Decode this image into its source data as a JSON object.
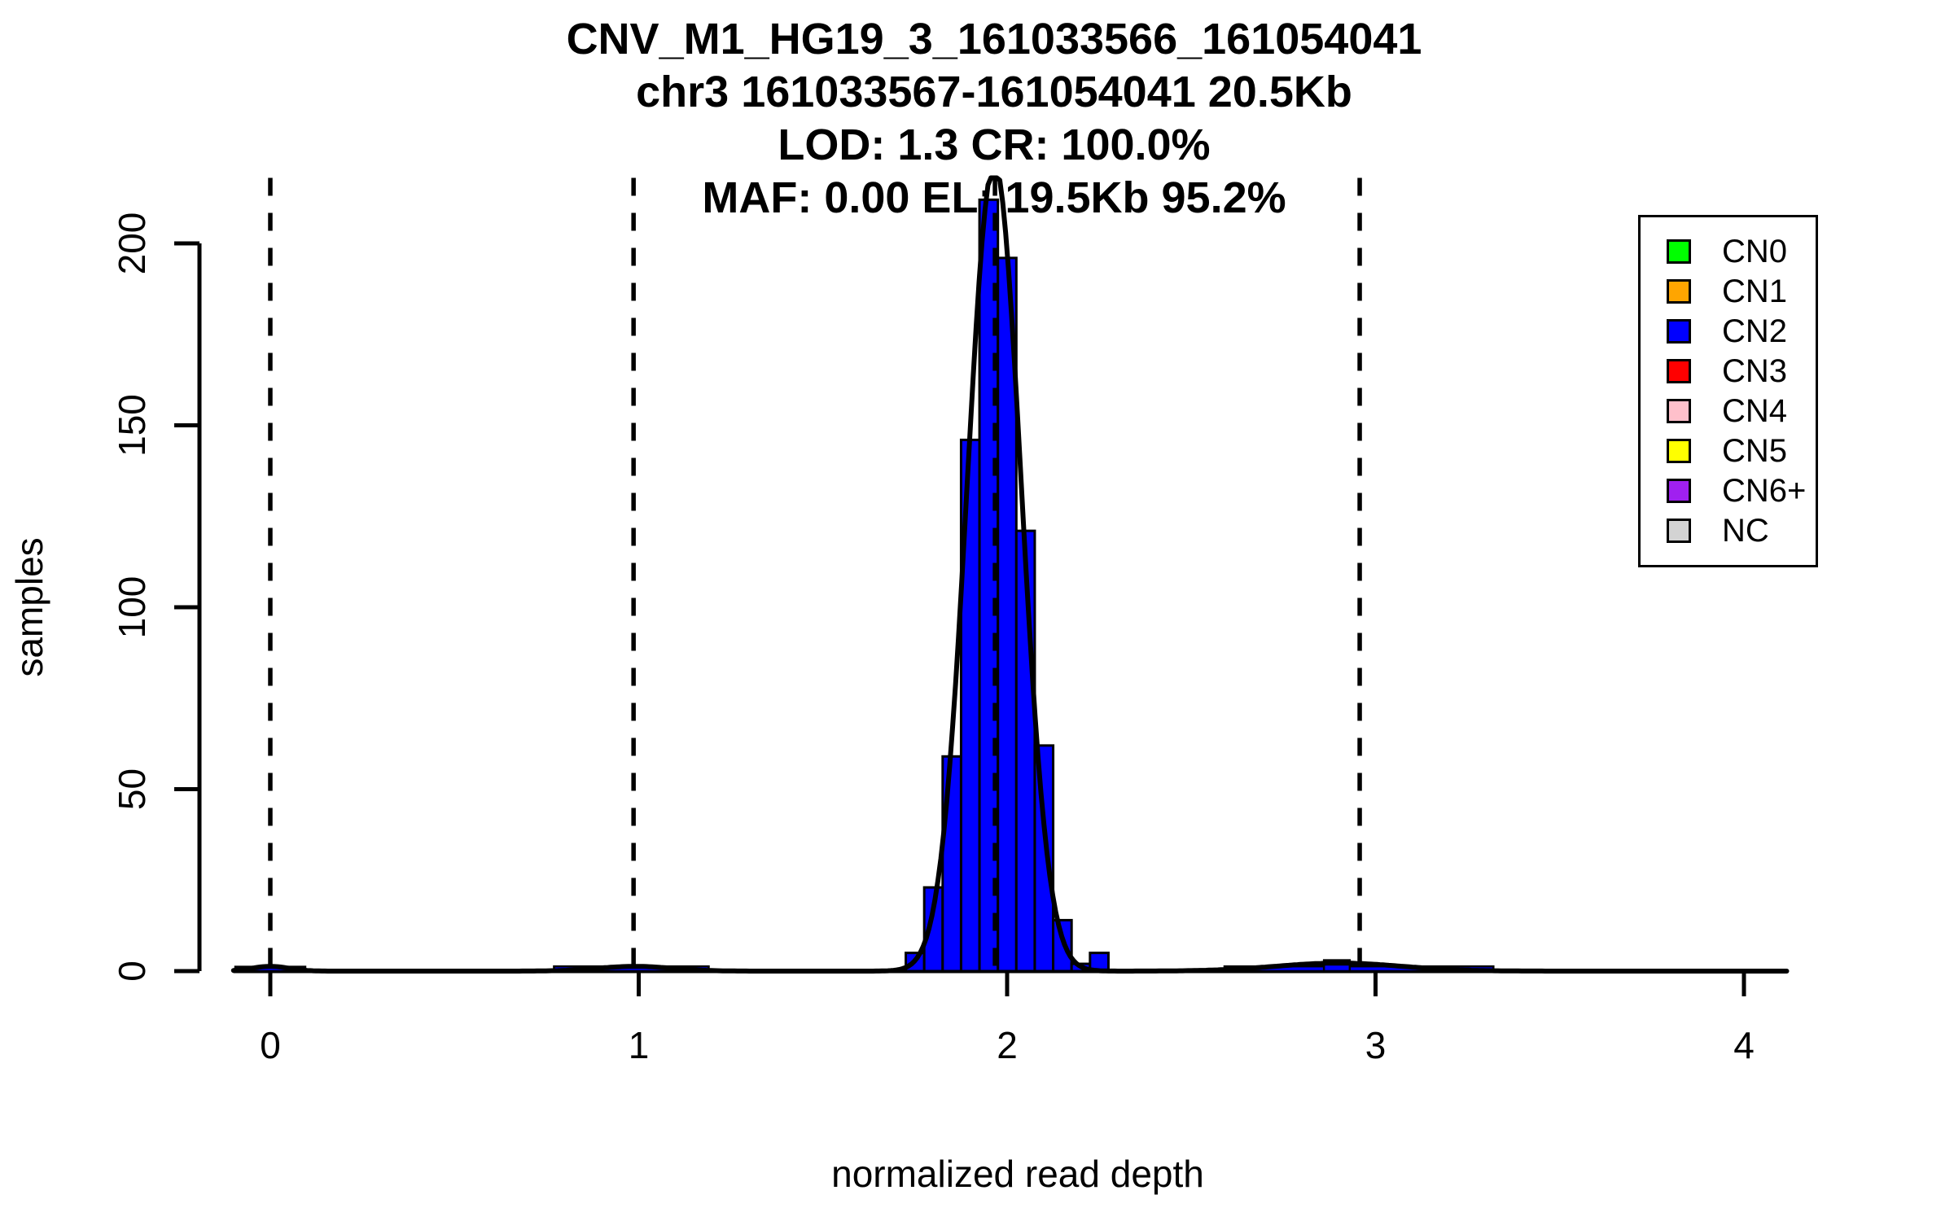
{
  "title": {
    "line1": "CNV_M1_HG19_3_161033566_161054041",
    "line2": "chr3 161033567-161054041 20.5Kb",
    "line3": "LOD: 1.3 CR: 100.0%",
    "line4": "MAF: 0.00 EL: 19.5Kb 95.2%"
  },
  "chart_data": {
    "type": "bar",
    "subtype": "histogram-with-density-curve",
    "title": "CNV_M1_HG19_3_161033566_161054041 / chr3 161033567-161054041 20.5Kb / LOD: 1.3 CR: 100.0% / MAF: 0.00 EL: 19.5Kb 95.2%",
    "xlabel": "normalized read depth",
    "ylabel": "samples",
    "xlim": [
      -0.1,
      4.12
    ],
    "ylim": [
      0,
      218
    ],
    "x_ticks": [
      "0",
      "1",
      "2",
      "3",
      "4"
    ],
    "x_tick_values": [
      0,
      1,
      2,
      3,
      4
    ],
    "y_ticks": [
      "0",
      "50",
      "100",
      "150",
      "200"
    ],
    "y_tick_values": [
      0,
      50,
      100,
      150,
      200
    ],
    "grid": false,
    "bin_width": 0.05,
    "bar_color": "#0000ff",
    "bar_border_color": "#000000",
    "bars": [
      {
        "x0": 1.725,
        "x1": 1.775,
        "count": 5
      },
      {
        "x0": 1.775,
        "x1": 1.825,
        "count": 23
      },
      {
        "x0": 1.825,
        "x1": 1.875,
        "count": 59
      },
      {
        "x0": 1.875,
        "x1": 1.925,
        "count": 146
      },
      {
        "x0": 1.925,
        "x1": 1.975,
        "count": 212
      },
      {
        "x0": 1.975,
        "x1": 2.025,
        "count": 196
      },
      {
        "x0": 2.025,
        "x1": 2.075,
        "count": 121
      },
      {
        "x0": 2.075,
        "x1": 2.125,
        "count": 62
      },
      {
        "x0": 2.125,
        "x1": 2.175,
        "count": 14
      },
      {
        "x0": 2.175,
        "x1": 2.225,
        "count": 2
      },
      {
        "x0": 2.225,
        "x1": 2.275,
        "count": 5
      }
    ],
    "baseline_bumps": [
      {
        "x0": -0.095,
        "x1": 0.095,
        "count": 1.2
      },
      {
        "x0": 0.77,
        "x1": 1.19,
        "count": 1.3
      },
      {
        "x0": 2.59,
        "x1": 3.32,
        "count": 1.3
      },
      {
        "x0": 2.86,
        "x1": 2.93,
        "count": 3
      }
    ],
    "dashed_lines": {
      "color": "#000000",
      "x_values": [
        0.0,
        0.986,
        1.967,
        2.957
      ]
    },
    "density_curve": {
      "color": "#000000",
      "clip_max": 218,
      "components": [
        {
          "amplitude": 222,
          "mean": 1.965,
          "sigma": 0.073
        },
        {
          "amplitude": 1.3,
          "mean": 0.0,
          "sigma": 0.05
        },
        {
          "amplitude": 1.3,
          "mean": 0.99,
          "sigma": 0.1
        },
        {
          "amplitude": 2.2,
          "mean": 2.9,
          "sigma": 0.17
        }
      ]
    },
    "legend": {
      "position": "top-right",
      "items": [
        {
          "label": "CN0",
          "color": "#00ff00"
        },
        {
          "label": "CN1",
          "color": "#ffa500"
        },
        {
          "label": "CN2",
          "color": "#0000ff"
        },
        {
          "label": "CN3",
          "color": "#ff0000"
        },
        {
          "label": "CN4",
          "color": "#ffc0cb"
        },
        {
          "label": "CN5",
          "color": "#ffff00"
        },
        {
          "label": "CN6+",
          "color": "#a020f0"
        },
        {
          "label": "NC",
          "color": "#d3d3d3"
        }
      ]
    }
  }
}
